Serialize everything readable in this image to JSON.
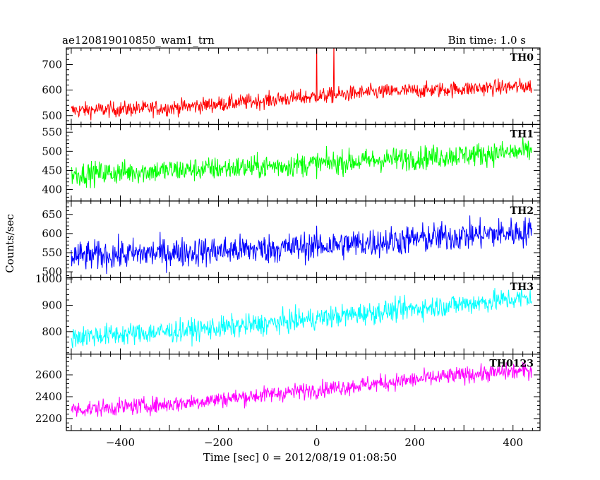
{
  "header": {
    "left_title": "ae120819010850_wam1_trn",
    "right_title": "Bin time: 1.0 s"
  },
  "chart_data": {
    "type": "line",
    "xlabel": "Time [sec] 0 = 2012/08/19 01:08:50",
    "ylabel": "Counts/sec",
    "xlim": [
      -510,
      455
    ],
    "x_range": [
      -500,
      438
    ],
    "x_ticks": [
      -400,
      -200,
      0,
      200,
      400
    ],
    "x_tick_labels": [
      "−400",
      "−200",
      "0",
      "200",
      "400"
    ],
    "panels": [
      {
        "name": "TH0",
        "color": "#ff0000",
        "ylim": [
          465,
          765
        ],
        "y_ticks": [
          500,
          600,
          700
        ],
        "y_tick_labels": [
          "500",
          "600",
          "700"
        ],
        "trend": [
          [
            -500,
            520
          ],
          [
            -300,
            530
          ],
          [
            -100,
            560
          ],
          [
            100,
            590
          ],
          [
            300,
            605
          ],
          [
            438,
            615
          ]
        ],
        "noise": 22,
        "spikes": [
          [
            0,
            765
          ],
          [
            35,
            765
          ]
        ]
      },
      {
        "name": "TH1",
        "color": "#00ff00",
        "ylim": [
          370,
          570
        ],
        "y_ticks": [
          400,
          450,
          500,
          550
        ],
        "y_tick_labels": [
          "400",
          "450",
          "500",
          "550"
        ],
        "trend": [
          [
            -500,
            440
          ],
          [
            -300,
            450
          ],
          [
            -100,
            460
          ],
          [
            100,
            475
          ],
          [
            300,
            490
          ],
          [
            438,
            500
          ]
        ],
        "noise": 22
      },
      {
        "name": "TH2",
        "color": "#0000ff",
        "ylim": [
          485,
          685
        ],
        "y_ticks": [
          500,
          550,
          600,
          650
        ],
        "y_tick_labels": [
          "500",
          "550",
          "600",
          "650"
        ],
        "trend": [
          [
            -500,
            540
          ],
          [
            -300,
            550
          ],
          [
            -100,
            560
          ],
          [
            100,
            575
          ],
          [
            300,
            595
          ],
          [
            438,
            605
          ]
        ],
        "noise": 28
      },
      {
        "name": "TH3",
        "color": "#00ffff",
        "ylim": [
          715,
          1005
        ],
        "y_ticks": [
          800,
          900,
          1000
        ],
        "y_tick_labels": [
          "800",
          "900",
          "1000"
        ],
        "trend": [
          [
            -500,
            780
          ],
          [
            -300,
            800
          ],
          [
            -100,
            830
          ],
          [
            100,
            870
          ],
          [
            300,
            905
          ],
          [
            438,
            930
          ]
        ],
        "noise": 30
      },
      {
        "name": "TH0123",
        "color": "#ff00ff",
        "ylim": [
          2090,
          2790
        ],
        "y_ticks": [
          2200,
          2400,
          2600
        ],
        "y_tick_labels": [
          "2200",
          "2400",
          "2600"
        ],
        "trend": [
          [
            -500,
            2280
          ],
          [
            -300,
            2330
          ],
          [
            -100,
            2420
          ],
          [
            100,
            2510
          ],
          [
            300,
            2600
          ],
          [
            438,
            2640
          ]
        ],
        "noise": 55
      }
    ]
  }
}
